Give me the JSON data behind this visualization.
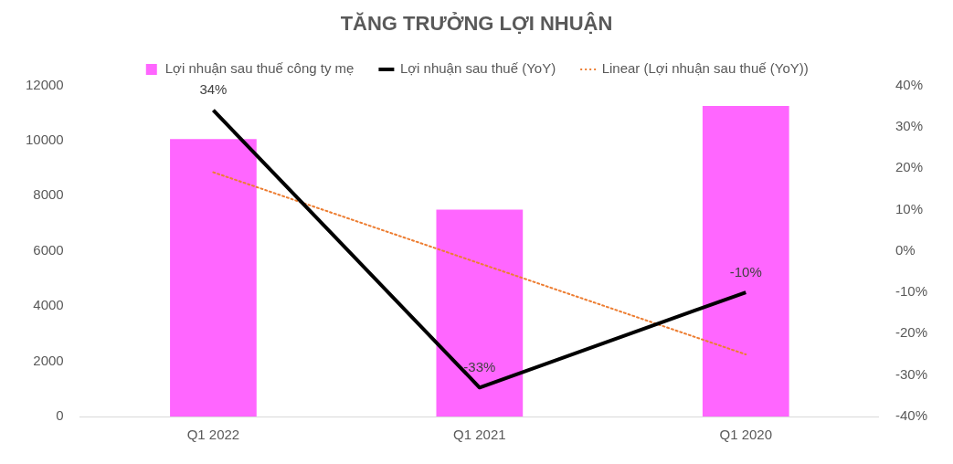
{
  "chart_data": {
    "type": "bar",
    "title": "TĂNG TRƯỞNG LỢI NHUẬN",
    "categories": [
      "Q1 2022",
      "Q1 2021",
      "Q1 2020"
    ],
    "series": [
      {
        "name": "Lợi nhuận sau thuế công ty mẹ",
        "color": "#ff66ff",
        "values": [
          10050,
          7500,
          11250
        ]
      },
      {
        "name": "Lợi nhuận sau thuế (YoY)",
        "type": "line",
        "axis": "y2",
        "color": "#000000",
        "values": [
          34,
          -33,
          -10
        ],
        "value_labels": [
          "34%",
          "-33%",
          "-10%"
        ]
      },
      {
        "name": "Linear (Lợi nhuận sau thuế (YoY))",
        "type": "line",
        "axis": "y2",
        "color": "#ed7d31",
        "line_style": "dotted",
        "values": [
          19,
          -3,
          -25
        ]
      }
    ],
    "ylim": [
      0,
      12000
    ],
    "yticks": [
      0,
      2000,
      4000,
      6000,
      8000,
      10000,
      12000
    ],
    "y2lim": [
      -40,
      40
    ],
    "y2ticks": [
      {
        "value": -40,
        "label": "-40%"
      },
      {
        "value": -30,
        "label": "-30%"
      },
      {
        "value": -20,
        "label": "-20%"
      },
      {
        "value": -10,
        "label": "-10%"
      },
      {
        "value": 0,
        "label": "0%"
      },
      {
        "value": 10,
        "label": "10%"
      },
      {
        "value": 20,
        "label": "20%"
      },
      {
        "value": 30,
        "label": "30%"
      },
      {
        "value": 40,
        "label": "40%"
      }
    ],
    "grid": false,
    "legend": "top",
    "marker": "none"
  }
}
